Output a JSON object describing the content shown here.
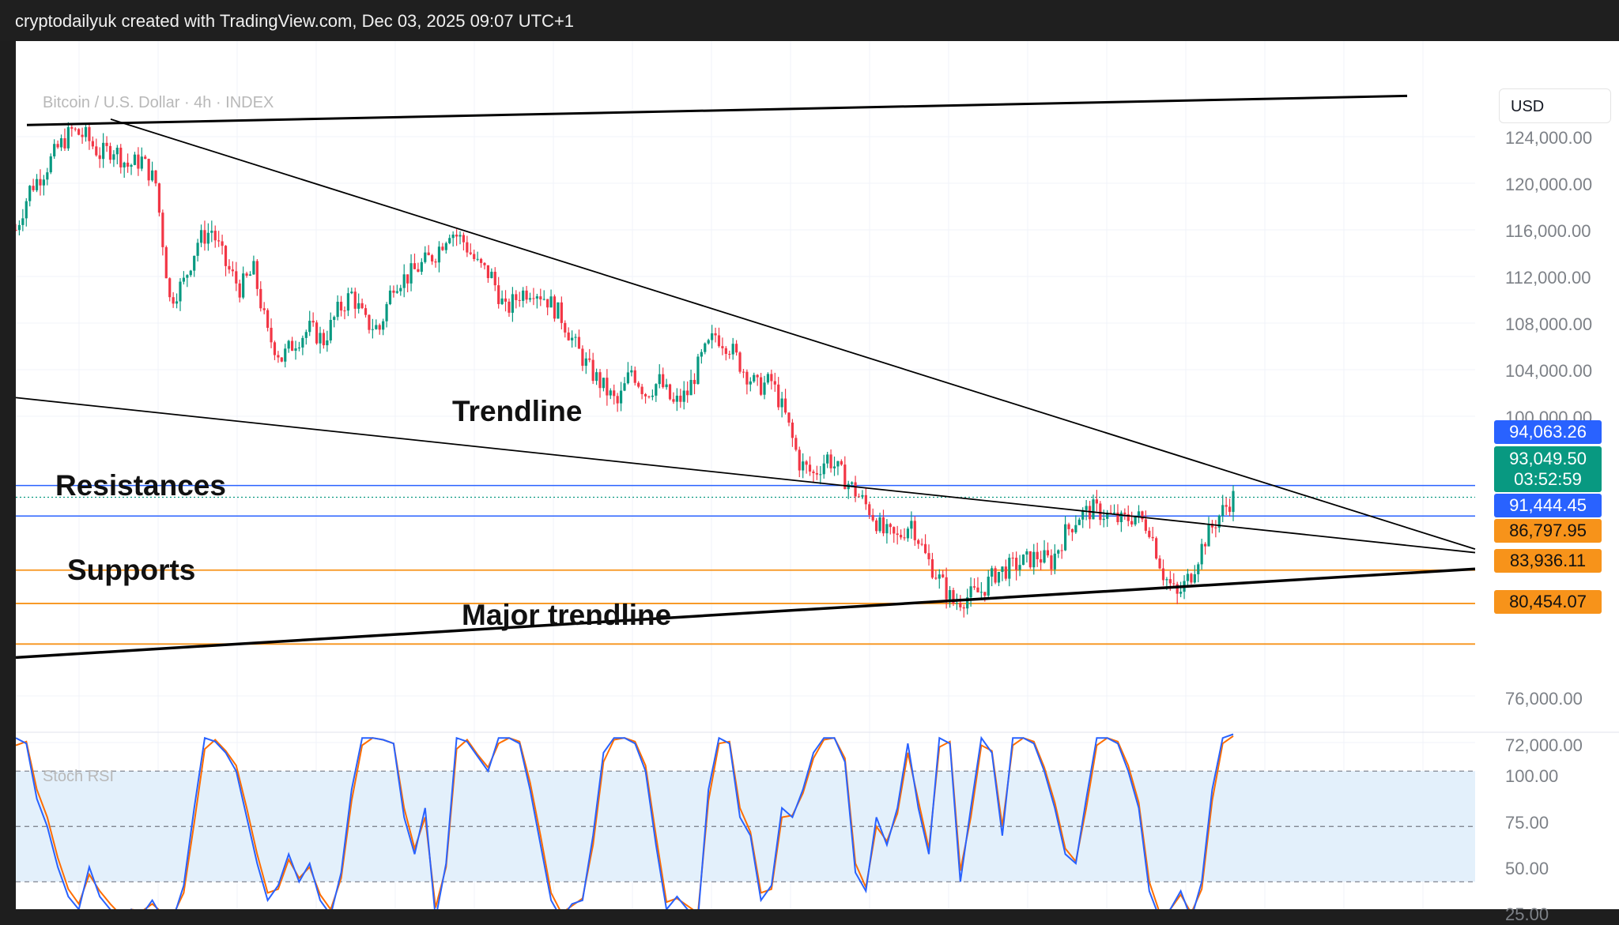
{
  "header": {
    "title": "cryptodailyuk created with TradingView.com, Dec 03, 2025 09:07 UTC+1"
  },
  "toolbar": {
    "currency": "USD"
  },
  "chart": {
    "symbol_label": "Bitcoin / U.S. Dollar · 4h · INDEX",
    "stoch_label": "Stoch RSI"
  },
  "annotations": {
    "trendline": "Trendline",
    "resistances": "Resistances",
    "supports": "Supports",
    "major_trendline": "Major trendline"
  },
  "price_labels": {
    "upper_resistance": {
      "text": "94,063.26",
      "color": "#2962ff"
    },
    "current": {
      "text": "93,049.50",
      "color": "#089981"
    },
    "countdown": "03:52:59",
    "lower_resistance": {
      "text": "91,444.45",
      "color": "#2962ff"
    },
    "support_1": {
      "text": "86,797.95",
      "color": "#f7931a"
    },
    "support_2": {
      "text": "83,936.11",
      "color": "#f7931a"
    },
    "support_3": {
      "text": "80,454.07",
      "color": "#f7931a"
    }
  },
  "colors": {
    "up_candle": "#089981",
    "down_candle": "#f23645",
    "resistance_line": "#2962ff",
    "support_line": "#f7931a",
    "trendline": "#000000",
    "stoch_k": "#2962ff",
    "stoch_d": "#ff6d00",
    "stoch_band": "#e3f0fb"
  },
  "chart_data": [
    {
      "type": "candlestick",
      "title": "Bitcoin / U.S. Dollar · 4h · INDEX",
      "y_axis_ticks": [
        "124,000.00",
        "120,000.00",
        "116,000.00",
        "112,000.00",
        "108,000.00",
        "104,000.00",
        "100,000.00",
        "76,000.00",
        "72,000.00"
      ],
      "y_axis_values": [
        124000,
        120000,
        116000,
        112000,
        108000,
        104000,
        100000,
        76000,
        72000
      ],
      "ylim": [
        70000,
        128000
      ],
      "grid": true,
      "closes_sampled": [
        116000,
        119500,
        121000,
        123000,
        124500,
        124000,
        122500,
        123000,
        121500,
        122000,
        120000,
        110000,
        111500,
        115000,
        116000,
        113000,
        111000,
        112500,
        107000,
        105000,
        106500,
        107500,
        106500,
        109000,
        110500,
        108000,
        107500,
        111500,
        112000,
        113000,
        114000,
        116000,
        115000,
        113000,
        112000,
        109000,
        110500,
        111000,
        110000,
        108500,
        106000,
        104000,
        102500,
        101000,
        104000,
        102000,
        103000,
        101000,
        102000,
        105000,
        107000,
        106000,
        104000,
        102500,
        103000,
        100000,
        96000,
        95000,
        96500,
        95000,
        93500,
        92000,
        90000,
        89500,
        91000,
        88000,
        86000,
        84000,
        84500,
        85000,
        86500,
        87000,
        87500,
        88000,
        87500,
        90000,
        91500,
        92000,
        91500,
        91000,
        91500,
        90500,
        86500,
        84500,
        86500,
        89500,
        91500,
        93050
      ],
      "resistance_levels": [
        94063.26,
        91444.45
      ],
      "support_levels": [
        86797.95,
        83936.11,
        80454.07
      ],
      "last_price": 93049.5,
      "candle_countdown": "03:52:59",
      "trendlines": [
        "descending trendline from ~124,000 to ~88,500",
        "lower trendline from ~100,000 to ~88,000",
        "major ascending trendline from ~78,000 to ~86,800",
        "upper channel line from ~125,000 to ~127,500"
      ]
    },
    {
      "type": "line",
      "title": "Stoch RSI",
      "y_axis_ticks": [
        "100.00",
        "75.00",
        "50.00",
        "25.00"
      ],
      "y_axis_values": [
        100,
        75,
        50,
        25
      ],
      "ylim": [
        0,
        100
      ],
      "band": [
        20,
        80
      ],
      "series": [
        {
          "values": [
            98,
            95,
            65,
            50,
            28,
            12,
            5,
            28,
            12,
            5,
            0,
            5,
            2,
            10,
            0,
            0,
            18,
            60,
            98,
            96,
            90,
            80,
            55,
            30,
            10,
            18,
            35,
            20,
            30,
            10,
            2,
            25,
            70,
            98,
            98,
            97,
            95,
            55,
            35,
            60,
            0,
            30,
            98,
            96,
            88,
            80,
            98,
            98,
            95,
            70,
            40,
            10,
            0,
            8,
            10,
            45,
            90,
            98,
            98,
            95,
            80,
            40,
            5,
            12,
            5,
            0,
            70,
            98,
            95,
            55,
            45,
            10,
            18,
            60,
            55,
            70,
            90,
            98,
            98,
            85,
            25,
            15,
            55,
            40,
            60,
            95,
            60,
            35,
            98,
            95,
            20,
            60,
            98,
            90,
            45,
            98,
            98,
            95,
            80,
            60,
            35,
            30,
            65,
            98,
            98,
            95,
            80,
            60,
            15,
            0,
            5,
            15,
            0,
            20,
            70,
            98,
            100
          ]
        },
        {
          "values": [
            94,
            96,
            70,
            55,
            33,
            16,
            8,
            24,
            15,
            8,
            2,
            5,
            4,
            8,
            3,
            2,
            14,
            52,
            92,
            97,
            91,
            83,
            60,
            35,
            14,
            16,
            32,
            22,
            28,
            13,
            5,
            22,
            64,
            94,
            98,
            97,
            95,
            60,
            38,
            55,
            6,
            28,
            92,
            97,
            89,
            82,
            95,
            98,
            96,
            74,
            45,
            14,
            3,
            7,
            11,
            40,
            85,
            97,
            98,
            96,
            83,
            45,
            9,
            11,
            7,
            3,
            64,
            95,
            96,
            60,
            47,
            14,
            16,
            55,
            56,
            68,
            87,
            97,
            98,
            87,
            30,
            17,
            50,
            42,
            57,
            90,
            64,
            38,
            93,
            96,
            26,
            55,
            94,
            91,
            50,
            94,
            98,
            96,
            82,
            63,
            38,
            31,
            60,
            94,
            98,
            96,
            83,
            63,
            20,
            3,
            5,
            13,
            3,
            16,
            64,
            95,
            99
          ]
        }
      ]
    }
  ]
}
